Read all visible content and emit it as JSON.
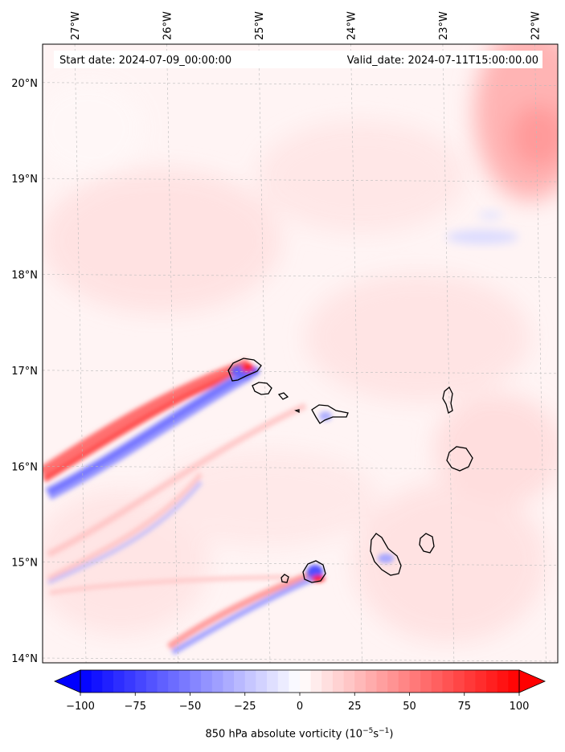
{
  "map": {
    "start_date_label": "Start date: 2024-07-09_00:00:00",
    "valid_date_label": "Valid_date: 2024-07-11T15:00:00.00",
    "lon_ticks": [
      "27°W",
      "26°W",
      "25°W",
      "24°W",
      "23°W",
      "22°W"
    ],
    "lat_ticks": [
      "20°N",
      "19°N",
      "18°N",
      "17°N",
      "16°N",
      "15°N",
      "14°N"
    ],
    "extent": {
      "lon_min": -27.35,
      "lon_max": -21.75,
      "lat_min": 13.95,
      "lat_max": 20.4
    },
    "field": "850 hPa absolute vorticity",
    "islands": [
      "Santo Antão",
      "São Vicente",
      "Santa Luzia",
      "São Nicolau",
      "Sal",
      "Boa Vista",
      "Maio",
      "Santiago",
      "Fogo",
      "Brava"
    ]
  },
  "colorbar": {
    "title_prefix": "850 hPa absolute vorticity (10",
    "title_exp1": "−5",
    "title_mid": "s",
    "title_exp2": "−1",
    "title_suffix": ")",
    "tick_labels": [
      "−100",
      "−75",
      "−50",
      "−25",
      "0",
      "25",
      "50",
      "75",
      "100"
    ],
    "min": -100,
    "max": 100,
    "extend": "both",
    "colors": {
      "negative": "#0000ff",
      "neutral": "#ffffff",
      "positive": "#ff0000"
    }
  }
}
